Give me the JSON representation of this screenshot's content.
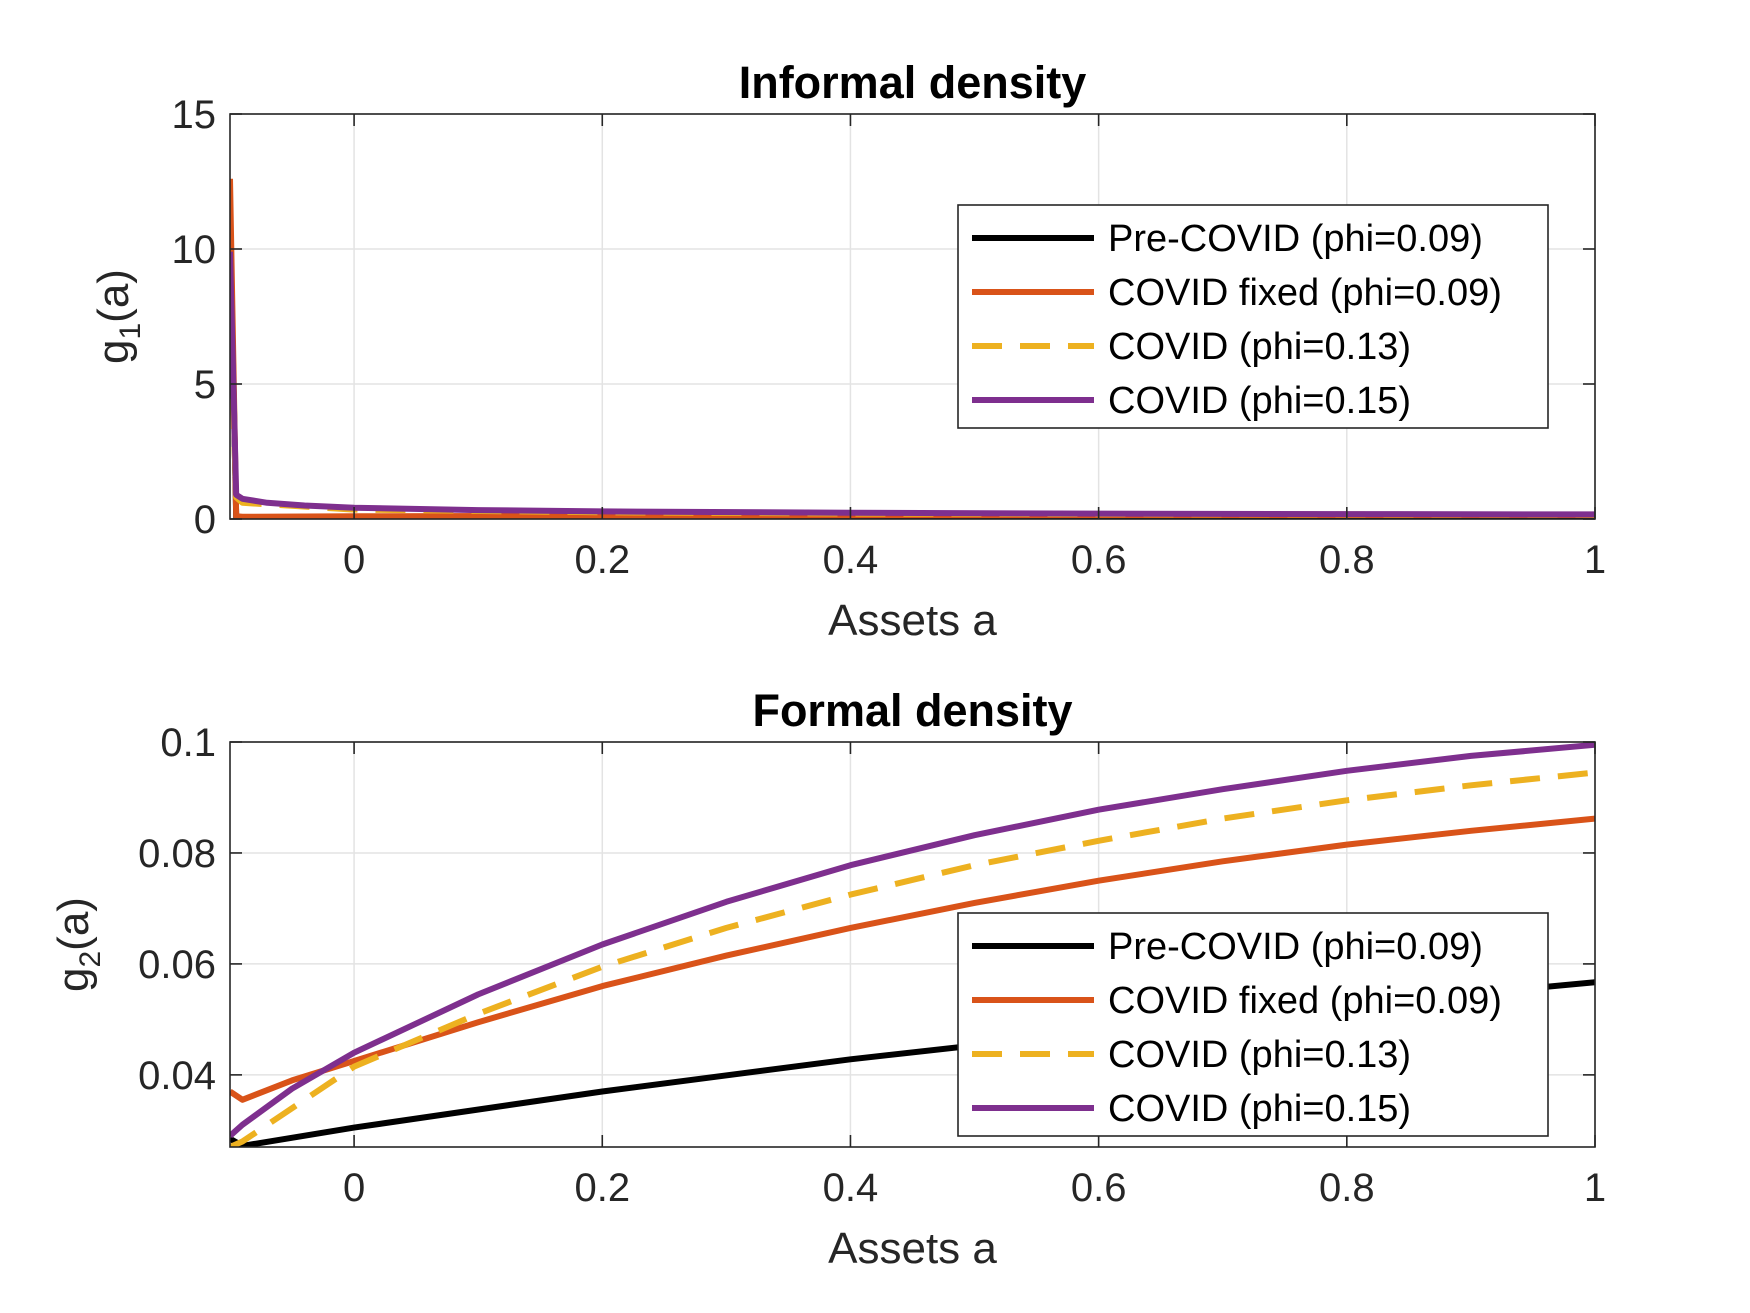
{
  "chart_data": [
    {
      "type": "line",
      "title": "Informal density",
      "xlabel": "Assets a",
      "ylabel_main": "g",
      "ylabel_sub": "1",
      "ylabel_tail": "(a)",
      "xlim": [
        -0.1,
        1
      ],
      "ylim": [
        0,
        15
      ],
      "xticks": [
        0,
        0.2,
        0.4,
        0.6,
        0.8,
        1
      ],
      "xtick_labels": [
        "0",
        "0.2",
        "0.4",
        "0.6",
        "0.8",
        "1"
      ],
      "yticks": [
        0,
        5,
        10,
        15
      ],
      "ytick_labels": [
        "0",
        "5",
        "10",
        "15"
      ],
      "grid": true,
      "legend_position": "upper-right",
      "series": [
        {
          "name": "Pre-COVID (phi=0.09)",
          "color": "#000000",
          "dash": "solid",
          "x": [
            -0.1,
            -0.095,
            -0.09,
            0,
            0.2,
            0.4,
            0.6,
            0.8,
            1
          ],
          "y": [
            11.2,
            0.05,
            0.05,
            0.05,
            0.05,
            0.05,
            0.05,
            0.05,
            0.05
          ]
        },
        {
          "name": "COVID fixed (phi=0.09)",
          "color": "#D95319",
          "dash": "solid",
          "x": [
            -0.1,
            -0.095,
            -0.09,
            0,
            0.2,
            0.4,
            0.6,
            0.8,
            1
          ],
          "y": [
            12.6,
            0.1,
            0.08,
            0.1,
            0.12,
            0.14,
            0.15,
            0.15,
            0.15
          ]
        },
        {
          "name": "COVID (phi=0.13)",
          "color": "#EDB120",
          "dash": "dashed",
          "x": [
            -0.1,
            -0.095,
            -0.09,
            0,
            0.2,
            0.4,
            0.6,
            0.8,
            1
          ],
          "y": [
            8.0,
            0.8,
            0.6,
            0.35,
            0.25,
            0.2,
            0.18,
            0.17,
            0.16
          ]
        },
        {
          "name": "COVID (phi=0.15)",
          "color": "#7E2F8E",
          "dash": "solid",
          "x": [
            -0.1,
            -0.095,
            -0.09,
            -0.07,
            -0.04,
            0,
            0.1,
            0.2,
            0.4,
            0.6,
            0.8,
            1
          ],
          "y": [
            9.9,
            0.9,
            0.75,
            0.6,
            0.5,
            0.42,
            0.33,
            0.28,
            0.23,
            0.2,
            0.18,
            0.17
          ]
        }
      ]
    },
    {
      "type": "line",
      "title": "Formal density",
      "xlabel": "Assets a",
      "ylabel_main": "g",
      "ylabel_sub": "2",
      "ylabel_tail": "(a)",
      "xlim": [
        -0.1,
        1
      ],
      "ylim": [
        0.027,
        0.1
      ],
      "xticks": [
        0,
        0.2,
        0.4,
        0.6,
        0.8,
        1
      ],
      "xtick_labels": [
        "0",
        "0.2",
        "0.4",
        "0.6",
        "0.8",
        "1"
      ],
      "yticks": [
        0.04,
        0.06,
        0.08,
        0.1
      ],
      "ytick_labels": [
        "0.04",
        "0.06",
        "0.08",
        "0.1"
      ],
      "grid": true,
      "legend_position": "lower-right",
      "series": [
        {
          "name": "Pre-COVID (phi=0.09)",
          "color": "#000000",
          "dash": "solid",
          "x": [
            -0.1,
            -0.09,
            0,
            0.2,
            0.4,
            0.6,
            0.8,
            1
          ],
          "y": [
            0.0285,
            0.0272,
            0.0305,
            0.037,
            0.0428,
            0.0478,
            0.0525,
            0.0567
          ]
        },
        {
          "name": "COVID fixed (phi=0.09)",
          "color": "#D95319",
          "dash": "solid",
          "x": [
            -0.1,
            -0.09,
            -0.05,
            0,
            0.1,
            0.2,
            0.3,
            0.4,
            0.5,
            0.6,
            0.7,
            0.8,
            0.9,
            1
          ],
          "y": [
            0.037,
            0.0355,
            0.039,
            0.0425,
            0.0495,
            0.056,
            0.0615,
            0.0665,
            0.071,
            0.075,
            0.0785,
            0.0815,
            0.084,
            0.0862
          ]
        },
        {
          "name": "COVID (phi=0.13)",
          "color": "#EDB120",
          "dash": "dashed",
          "x": [
            -0.1,
            -0.09,
            -0.05,
            0,
            0.1,
            0.2,
            0.3,
            0.4,
            0.5,
            0.6,
            0.7,
            0.8,
            0.9,
            1
          ],
          "y": [
            0.027,
            0.028,
            0.034,
            0.0415,
            0.051,
            0.0595,
            0.0665,
            0.0725,
            0.0778,
            0.0822,
            0.0862,
            0.0895,
            0.0922,
            0.0945
          ]
        },
        {
          "name": "COVID (phi=0.15)",
          "color": "#7E2F8E",
          "dash": "solid",
          "x": [
            -0.1,
            -0.09,
            -0.05,
            0,
            0.1,
            0.2,
            0.3,
            0.4,
            0.5,
            0.6,
            0.7,
            0.8,
            0.9,
            1
          ],
          "y": [
            0.029,
            0.031,
            0.0375,
            0.044,
            0.0545,
            0.0635,
            0.0712,
            0.0778,
            0.0832,
            0.0878,
            0.0915,
            0.0948,
            0.0975,
            0.0995
          ]
        }
      ]
    }
  ]
}
